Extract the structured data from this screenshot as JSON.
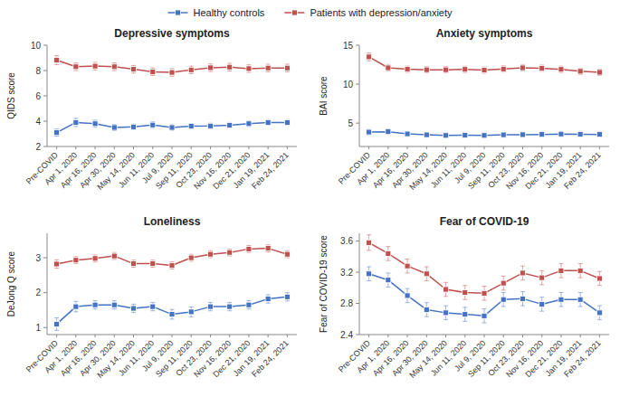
{
  "chart_data": [
    {
      "type": "line",
      "title": "Depressive symptoms",
      "y_label": "QIDS score",
      "categories": [
        "Pre-COVID",
        "Apr 1, 2020",
        "Apr 16, 2020",
        "Apr 30, 2020",
        "May 14, 2020",
        "Jun 11, 2020",
        "Jul 9, 2020",
        "Sep 11, 2020",
        "Oct 23, 2020",
        "Nov 16, 2020",
        "Dec 21, 2020",
        "Jan 19, 2021",
        "Feb 24, 2021"
      ],
      "series": [
        {
          "name": "Healthy controls",
          "color": "#4472C4",
          "marker": "square",
          "line_style": "solid",
          "values": [
            3.1,
            3.9,
            3.8,
            3.5,
            3.55,
            3.7,
            3.5,
            3.6,
            3.62,
            3.68,
            3.8,
            3.9,
            3.9
          ],
          "errors": [
            0.28,
            0.32,
            0.28,
            0.25,
            0.22,
            0.25,
            0.22,
            0.22,
            0.22,
            0.22,
            0.22,
            0.22,
            0.22
          ]
        },
        {
          "name": "Patients with depression/anxiety",
          "color": "#C0504D",
          "marker": "square",
          "line_style": "solid",
          "values": [
            8.82,
            8.3,
            8.35,
            8.3,
            8.1,
            7.9,
            7.85,
            8.05,
            8.22,
            8.27,
            8.15,
            8.2,
            8.2
          ],
          "errors": [
            0.35,
            0.3,
            0.3,
            0.3,
            0.3,
            0.3,
            0.3,
            0.3,
            0.3,
            0.3,
            0.3,
            0.3,
            0.3
          ]
        }
      ],
      "ylim": [
        2,
        10
      ],
      "yticks": [
        2,
        4,
        6,
        8,
        10
      ],
      "grid": false,
      "legend": "top"
    },
    {
      "type": "line",
      "title": "Anxiety symptoms",
      "y_label": "BAI score",
      "categories": [
        "Pre-COVID",
        "Apr 1, 2020",
        "Apr 16, 2020",
        "Apr 30, 2020",
        "May 14, 2020",
        "Jun 11, 2020",
        "Jul 9, 2020",
        "Sep 11, 2020",
        "Oct 23, 2020",
        "Nov 16, 2020",
        "Dec 21, 2020",
        "Jan 19, 2021",
        "Feb 24, 2021"
      ],
      "series": [
        {
          "name": "Healthy controls",
          "color": "#4472C4",
          "marker": "square",
          "line_style": "solid",
          "values": [
            3.85,
            3.9,
            3.62,
            3.5,
            3.42,
            3.45,
            3.42,
            3.5,
            3.52,
            3.55,
            3.6,
            3.58,
            3.55
          ],
          "errors": [
            0.32,
            0.35,
            0.3,
            0.28,
            0.28,
            0.28,
            0.28,
            0.28,
            0.28,
            0.28,
            0.28,
            0.28,
            0.28
          ]
        },
        {
          "name": "Patients with depression/anxiety",
          "color": "#C0504D",
          "marker": "square",
          "line_style": "solid",
          "values": [
            13.5,
            12.1,
            11.92,
            11.85,
            11.85,
            11.9,
            11.8,
            11.95,
            12.1,
            12.05,
            11.9,
            11.65,
            11.52
          ],
          "errors": [
            0.5,
            0.42,
            0.4,
            0.4,
            0.4,
            0.4,
            0.4,
            0.4,
            0.4,
            0.4,
            0.4,
            0.4,
            0.4
          ]
        }
      ],
      "ylim": [
        2,
        15
      ],
      "yticks": [
        5,
        10,
        15
      ],
      "grid": false
    },
    {
      "type": "line",
      "title": "Loneliness",
      "y_label": "DeJong Q score",
      "categories": [
        "Pre-COVID",
        "Apr 1, 2020",
        "Apr 16, 2020",
        "Apr 30, 2020",
        "May 14, 2020",
        "Jun 11, 2020",
        "Jul 9, 2020",
        "Sep 11, 2020",
        "Oct 23, 2020",
        "Nov 16, 2020",
        "Dec 21, 2020",
        "Jan 19, 2021",
        "Feb 24, 2021"
      ],
      "series": [
        {
          "name": "Healthy controls",
          "color": "#4472C4",
          "marker": "square",
          "line_style": "solid",
          "values": [
            1.1,
            1.6,
            1.65,
            1.65,
            1.55,
            1.6,
            1.38,
            1.45,
            1.6,
            1.6,
            1.65,
            1.82,
            1.88
          ],
          "errors": [
            0.18,
            0.15,
            0.12,
            0.12,
            0.12,
            0.12,
            0.14,
            0.14,
            0.12,
            0.12,
            0.12,
            0.12,
            0.12
          ]
        },
        {
          "name": "Patients with depression/anxiety",
          "color": "#C0504D",
          "marker": "square",
          "line_style": "solid",
          "values": [
            2.82,
            2.93,
            2.98,
            3.05,
            2.83,
            2.83,
            2.78,
            3.0,
            3.1,
            3.15,
            3.25,
            3.27,
            3.1
          ],
          "errors": [
            0.12,
            0.1,
            0.1,
            0.1,
            0.1,
            0.1,
            0.1,
            0.1,
            0.1,
            0.1,
            0.1,
            0.1,
            0.1
          ]
        }
      ],
      "ylim": [
        0.8,
        3.7
      ],
      "yticks": [
        1,
        2,
        3
      ],
      "grid": false
    },
    {
      "type": "line",
      "title": "Fear of COVID-19",
      "y_label": "Fear of COVID-19 score",
      "categories": [
        "Pre-COVID",
        "Apr 1, 2020",
        "Apr 16, 2020",
        "Apr 30, 2020",
        "May 14, 2020",
        "Jun 11, 2020",
        "Jul 9, 2020",
        "Sep 11, 2020",
        "Oct 23, 2020",
        "Nov 16, 2020",
        "Dec 21, 2020",
        "Jan 19, 2021",
        "Feb 24, 2021"
      ],
      "series": [
        {
          "name": "Healthy controls",
          "color": "#4472C4",
          "marker": "square",
          "line_style": "solid",
          "values": [
            3.18,
            3.1,
            2.9,
            2.72,
            2.68,
            2.66,
            2.64,
            2.85,
            2.86,
            2.79,
            2.85,
            2.85,
            2.68
          ],
          "errors": [
            0.09,
            0.09,
            0.09,
            0.09,
            0.09,
            0.09,
            0.09,
            0.09,
            0.09,
            0.09,
            0.09,
            0.09,
            0.09
          ]
        },
        {
          "name": "Patients with depression/anxiety",
          "color": "#C0504D",
          "marker": "square",
          "line_style": "solid",
          "values": [
            3.58,
            3.44,
            3.28,
            3.18,
            2.98,
            2.94,
            2.93,
            3.06,
            3.19,
            3.13,
            3.22,
            3.22,
            3.12
          ],
          "errors": [
            0.1,
            0.09,
            0.09,
            0.09,
            0.09,
            0.09,
            0.09,
            0.09,
            0.09,
            0.09,
            0.09,
            0.09,
            0.09
          ]
        }
      ],
      "ylim": [
        2.4,
        3.7
      ],
      "yticks": [
        2.4,
        2.8,
        3.2,
        3.6
      ],
      "grid": false
    }
  ]
}
